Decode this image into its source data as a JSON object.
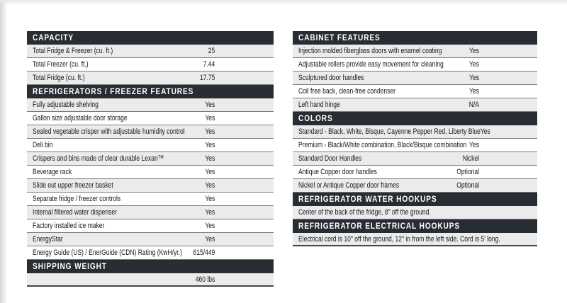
{
  "theme": {
    "header_bg": "#282c33",
    "header_text": "#ffffff",
    "row_alt_bg": "#ebebec",
    "row_bg": "#ffffff",
    "row_border": "#797c80",
    "text_color": "#17181a"
  },
  "columns": [
    {
      "name": "left",
      "sections": [
        {
          "title": "CAPACITY",
          "rows": [
            {
              "label": "Total Fridge & Freezer (cu. ft.)",
              "value": "25"
            },
            {
              "label": "Total Freezer (cu. ft.)",
              "value": "7.44"
            },
            {
              "label": "Total Fridge (cu. ft.)",
              "value": "17.75"
            }
          ]
        },
        {
          "title": "REFRIGERATORS / FREEZER FEATURES",
          "rows": [
            {
              "label": "Fully adjustable shelving",
              "value": "Yes"
            },
            {
              "label": "Gallon size adjustable door storage",
              "value": "Yes"
            },
            {
              "label": "Sealed vegetable crisper with adjustable humidity control",
              "value": "Yes"
            },
            {
              "label": "Deli bin",
              "value": "Yes"
            },
            {
              "label": "Crispers and bins made of clear durable Lexan™",
              "value": "Yes"
            },
            {
              "label": "Beverage rack",
              "value": "Yes"
            },
            {
              "label": "Slide out upper freezer basket",
              "value": "Yes"
            },
            {
              "label": "Separate fridge / freezer controls",
              "value": "Yes"
            },
            {
              "label": "Internal filtered water dispenser",
              "value": "Yes"
            },
            {
              "label": "Factory installed ice maker",
              "value": "Yes"
            },
            {
              "label": "EnergyStar",
              "value": "Yes"
            },
            {
              "label": "Energy Guide (US) / EnerGuide (CDN) Rating (KwH/yr.)",
              "value": "615/449"
            }
          ]
        },
        {
          "title": "SHIPPING WEIGHT",
          "rows": [
            {
              "label": "",
              "value": "460 lbs"
            }
          ]
        }
      ]
    },
    {
      "name": "right",
      "sections": [
        {
          "title": "CABINET FEATURES",
          "rows": [
            {
              "label": "Injection molded fiberglass doors with enamel coating",
              "value": "Yes"
            },
            {
              "label": "Adjustable rollers provide easy movement for cleaning",
              "value": "Yes"
            },
            {
              "label": "Sculptured door handles",
              "value": "Yes"
            },
            {
              "label": "Coil free back, clean-free condenser",
              "value": "Yes"
            },
            {
              "label": "Left hand hinge",
              "value": "N/A"
            }
          ]
        },
        {
          "title": "COLORS",
          "rows": [
            {
              "label": "Standard - Black, White, Bisque, Cayenne Pepper Red, Liberty Blue",
              "value": "Yes"
            },
            {
              "label": "Premium - Black/White combination, Black/Bisque combination",
              "value": "Yes"
            },
            {
              "label": "Standard Door Handles",
              "value": "Nickel"
            },
            {
              "label": "Antique Copper door handles",
              "value": "Optional"
            },
            {
              "label": "Nickel or Antique Copper door frames",
              "value": "Optional"
            }
          ]
        },
        {
          "title": "REFRIGERATOR WATER HOOKUPS",
          "rows": [
            {
              "label": "Center of the back of the fridge, 8\" off the ground.",
              "value": ""
            }
          ]
        },
        {
          "title": "REFRIGERATOR ELECTRICAL HOOKUPS",
          "rows": [
            {
              "label": "Electrical cord is 10\" off the ground, 12\" in from the left side. Cord is 5' long.",
              "value": ""
            }
          ]
        }
      ]
    }
  ]
}
